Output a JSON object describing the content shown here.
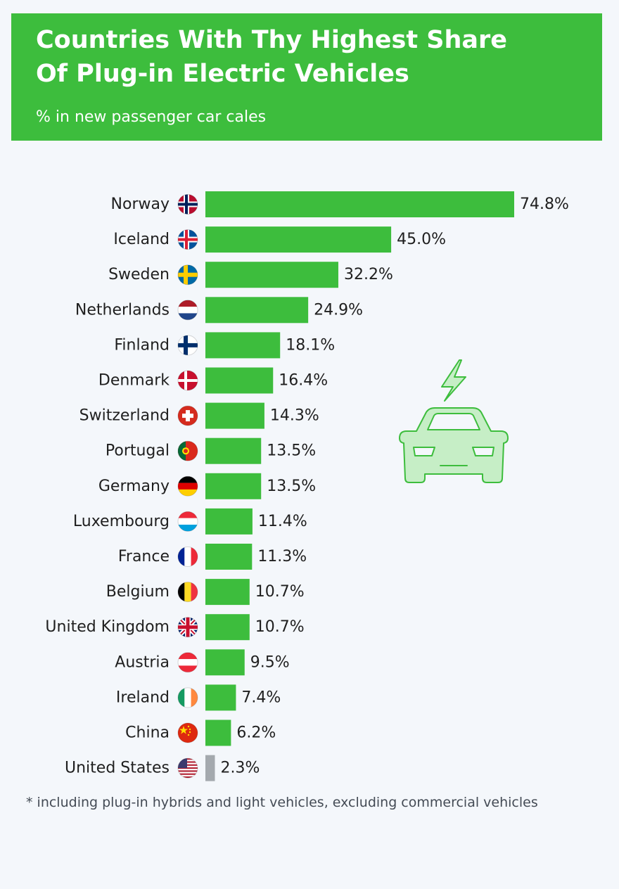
{
  "header": {
    "title": "Countries With Thy Highest Share\nOf Plug-in Electric Vehicles",
    "subtitle": "% in new passenger car cales"
  },
  "footnote": "* including plug-in hybrids and light vehicles, excluding commercial vehicles",
  "illustration": {
    "icon": "electric-car-icon"
  },
  "colors": {
    "bar": "#3dbd3d",
    "highlight_bar": "#a4a9ae",
    "background": "#f4f7fb",
    "header": "#3dbd3d"
  },
  "chart_data": {
    "type": "bar",
    "orientation": "horizontal",
    "categories": [
      "Norway",
      "Iceland",
      "Sweden",
      "Netherlands",
      "Finland",
      "Denmark",
      "Switzerland",
      "Portugal",
      "Germany",
      "Luxembourg",
      "France",
      "Belgium",
      "United Kingdom",
      "Austria",
      "Ireland",
      "China",
      "United States"
    ],
    "values": [
      74.8,
      45.0,
      32.2,
      24.9,
      18.1,
      16.4,
      14.3,
      13.5,
      13.5,
      11.4,
      11.3,
      10.7,
      10.7,
      9.5,
      7.4,
      6.2,
      2.3
    ],
    "value_labels": [
      "74.8%",
      "45.0%",
      "32.2%",
      "24.9%",
      "18.1%",
      "16.4%",
      "14.3%",
      "13.5%",
      "13.5%",
      "11.4%",
      "11.3%",
      "10.7%",
      "10.7%",
      "9.5%",
      "7.4%",
      "6.2%",
      "2.3%"
    ],
    "flags": [
      "norway-flag-icon",
      "iceland-flag-icon",
      "sweden-flag-icon",
      "netherlands-flag-icon",
      "finland-flag-icon",
      "denmark-flag-icon",
      "switzerland-flag-icon",
      "portugal-flag-icon",
      "germany-flag-icon",
      "luxembourg-flag-icon",
      "france-flag-icon",
      "belgium-flag-icon",
      "united-kingdom-flag-icon",
      "austria-flag-icon",
      "ireland-flag-icon",
      "china-flag-icon",
      "united-states-flag-icon"
    ],
    "highlight_category": "United States",
    "xlim": [
      0,
      74.8
    ],
    "grid": false,
    "legend": "none"
  }
}
